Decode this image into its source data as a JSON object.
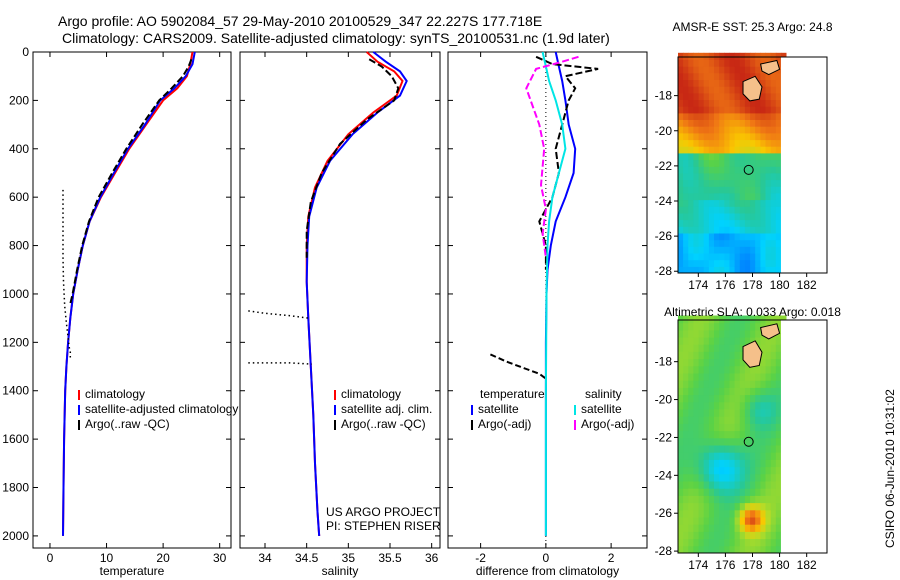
{
  "titles": {
    "line1": "Argo profile: AO 5902084_57 29-May-2010 20100529_347 22.227S 177.718E",
    "line2": "Climatology: CARS2009. Satellite-adjusted climatology: synTS_20100531.nc (1.9d later)"
  },
  "side_label": "CSIRO 06-Jun-2010 10:31:02",
  "colors": {
    "climatology": "#ff0000",
    "satellite": "#0000ff",
    "argo": "#000000",
    "sat_sal": "#00e5e5",
    "argo_sal_diff": "#ff00ff"
  },
  "chart_data": [
    {
      "type": "line",
      "xlabel": "temperature",
      "ylabel": "",
      "xlim": [
        -3,
        32
      ],
      "ylim": [
        2050,
        0
      ],
      "xticks": [
        0,
        10,
        20,
        30
      ],
      "yticks": [
        0,
        200,
        400,
        600,
        800,
        1000,
        1200,
        1400,
        1600,
        1800,
        2000
      ],
      "legend": {
        "placement": "bottom-right",
        "entries": [
          "climatology",
          "satellite-adjusted climatology",
          "Argo(..raw -QC)"
        ]
      },
      "series": [
        {
          "name": "climatology",
          "x": [
            25.2,
            24.8,
            24.2,
            22.5,
            20.0,
            17.0,
            14.0,
            11.5,
            9.0,
            7.0,
            5.8,
            4.9,
            4.1,
            3.6,
            3.2,
            2.9,
            2.7,
            2.5,
            2.4,
            2.3
          ],
          "y": [
            0,
            50,
            100,
            150,
            200,
            300,
            400,
            500,
            600,
            700,
            800,
            900,
            1000,
            1100,
            1200,
            1300,
            1400,
            1600,
            1800,
            2000
          ]
        },
        {
          "name": "satellite-adjusted climatology",
          "x": [
            25.6,
            25.2,
            24.0,
            22.0,
            19.5,
            16.8,
            13.8,
            11.3,
            8.9,
            7.0,
            5.8,
            4.9,
            4.1,
            3.6,
            3.2,
            2.9,
            2.7,
            2.5,
            2.4,
            2.3
          ],
          "y": [
            0,
            50,
            100,
            150,
            200,
            300,
            400,
            500,
            600,
            700,
            800,
            900,
            1000,
            1100,
            1200,
            1300,
            1400,
            1600,
            1800,
            2000
          ]
        },
        {
          "name": "Argo(..raw -QC)",
          "x": [
            25.0,
            24.5,
            23.5,
            21.5,
            19.3,
            16.3,
            13.5,
            11.0,
            8.6,
            6.9,
            5.7,
            4.8,
            4.0,
            3.5
          ],
          "y": [
            30,
            60,
            100,
            150,
            200,
            300,
            400,
            500,
            600,
            700,
            800,
            900,
            1000,
            1050
          ]
        },
        {
          "name": "",
          "style": "dotted",
          "x": [
            2.3,
            2.3,
            2.3,
            2.4,
            2.6,
            2.9,
            3.2,
            3.4,
            3.6,
            3.6
          ],
          "y": [
            570,
            700,
            850,
            950,
            1050,
            1120,
            1180,
            1220,
            1240,
            1270
          ]
        }
      ]
    },
    {
      "type": "line",
      "xlabel": "salinity",
      "xlim": [
        33.7,
        36.1
      ],
      "ylim": [
        2050,
        0
      ],
      "xticks": [
        34,
        34.5,
        35,
        35.5,
        36
      ],
      "legend": {
        "placement": "bottom-right",
        "entries": [
          "climatology",
          "satellite adj. clim.",
          "Argo(..raw -QC)"
        ]
      },
      "annotation": [
        "US ARGO PROJECT",
        "PI: STEPHEN RISER"
      ],
      "series": [
        {
          "name": "climatology",
          "x": [
            35.22,
            35.35,
            35.55,
            35.65,
            35.58,
            35.3,
            35.0,
            34.75,
            34.6,
            34.52,
            34.5,
            34.5,
            34.52,
            34.55,
            34.58,
            34.6,
            34.63,
            34.65
          ],
          "y": [
            0,
            40,
            80,
            120,
            180,
            250,
            340,
            450,
            560,
            680,
            800,
            950,
            1100,
            1300,
            1500,
            1700,
            1900,
            2000
          ]
        },
        {
          "name": "satellite adj. clim.",
          "x": [
            35.3,
            35.45,
            35.62,
            35.7,
            35.62,
            35.35,
            35.05,
            34.78,
            34.62,
            34.53,
            34.51,
            34.5,
            34.52,
            34.55,
            34.58,
            34.6,
            34.63,
            34.65
          ],
          "y": [
            0,
            40,
            80,
            120,
            180,
            250,
            340,
            450,
            560,
            680,
            800,
            950,
            1100,
            1300,
            1500,
            1700,
            1900,
            2000
          ]
        },
        {
          "name": "Argo(..raw -QC)",
          "x": [
            35.25,
            35.4,
            35.52,
            35.6,
            35.55,
            35.22,
            34.9,
            34.68,
            34.55,
            34.5,
            34.5
          ],
          "y": [
            30,
            60,
            100,
            150,
            200,
            280,
            380,
            500,
            620,
            740,
            850
          ]
        },
        {
          "name": "",
          "style": "dotted",
          "x": [
            33.8,
            34.0,
            34.3,
            34.52
          ],
          "y": [
            1070,
            1080,
            1090,
            1100
          ]
        },
        {
          "name": "",
          "style": "dotted",
          "x": [
            33.8,
            34.0,
            34.3,
            34.56
          ],
          "y": [
            1285,
            1285,
            1285,
            1290
          ]
        }
      ]
    },
    {
      "type": "line",
      "xlabel": "difference from climatology",
      "xlim": [
        -3,
        3.1
      ],
      "ylim": [
        2050,
        0
      ],
      "xticks": [
        -2,
        0,
        2
      ],
      "legend": {
        "placement": "bottom",
        "columns": [
          {
            "header": "temperature",
            "entries": [
              "satellite",
              "Argo(-adj)"
            ]
          },
          {
            "header": "salinity",
            "entries": [
              "satellite",
              "Argo(-adj)"
            ]
          }
        ]
      },
      "series": [
        {
          "name": "satellite",
          "group": "temperature",
          "x": [
            0.3,
            0.4,
            0.5,
            0.6,
            0.7,
            0.9,
            0.85,
            0.6,
            0.3,
            0.15,
            0.05,
            0.02,
            0.0,
            0.0,
            0.0
          ],
          "y": [
            0,
            60,
            120,
            200,
            300,
            400,
            500,
            600,
            700,
            800,
            900,
            1000,
            1200,
            1600,
            2000
          ]
        },
        {
          "name": "Argo(-adj)",
          "group": "temperature",
          "x": [
            -0.3,
            0.2,
            1.6,
            0.6,
            0.9,
            0.7,
            0.5,
            0.3,
            0.4,
            0.2,
            -0.2,
            0.0,
            0.0
          ],
          "y": [
            20,
            50,
            70,
            100,
            150,
            200,
            300,
            400,
            500,
            600,
            700,
            800,
            900
          ]
        },
        {
          "name": "",
          "group": "temperature",
          "style": "dashed",
          "x": [
            -1.7,
            -1.2,
            -0.6,
            -0.2,
            0.0
          ],
          "y": [
            1250,
            1280,
            1310,
            1330,
            1350
          ]
        },
        {
          "name": "satellite",
          "group": "salinity",
          "x": [
            -0.1,
            0.0,
            0.1,
            0.3,
            0.5,
            0.6,
            0.4,
            0.2,
            0.1,
            0.05,
            0.02,
            0.0,
            0.0
          ],
          "y": [
            0,
            60,
            120,
            200,
            300,
            400,
            500,
            600,
            700,
            800,
            1000,
            1400,
            2000
          ]
        },
        {
          "name": "Argo(-adj)",
          "group": "salinity",
          "x": [
            1.0,
            0.5,
            -0.3,
            -0.6,
            -0.2,
            -0.05,
            -0.15,
            0.0,
            -0.1,
            0.0
          ],
          "y": [
            20,
            40,
            70,
            150,
            300,
            400,
            550,
            650,
            750,
            850
          ]
        }
      ]
    },
    {
      "type": "heatmap",
      "title": "AMSR-E SST: 25.3 Argo: 24.8",
      "xlim": [
        172.5,
        183.5
      ],
      "ylim": [
        -28.1,
        -15.8
      ],
      "xticks": [
        174,
        176,
        178,
        180,
        182
      ],
      "yticks": [
        -18,
        -20,
        -22,
        -24,
        -26,
        -28
      ],
      "profile_location": {
        "lon": 177.718,
        "lat": -22.227
      }
    },
    {
      "type": "heatmap",
      "title": "Altimetric SLA: 0.033 Argo: 0.018",
      "xlim": [
        172.5,
        183.5
      ],
      "ylim": [
        -28.1,
        -15.8
      ],
      "xticks": [
        174,
        176,
        178,
        180,
        182
      ],
      "yticks": [
        -18,
        -20,
        -22,
        -24,
        -26,
        -28
      ],
      "profile_location": {
        "lon": 177.718,
        "lat": -22.227
      }
    }
  ]
}
